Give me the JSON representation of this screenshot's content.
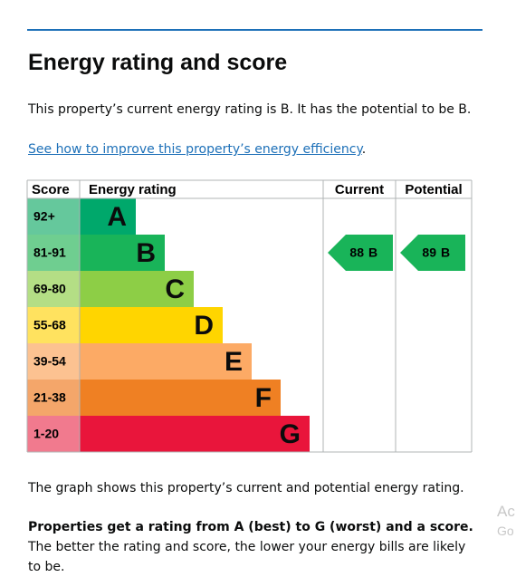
{
  "header": {
    "title": "Energy rating and score"
  },
  "intro": "This property’s current energy rating is B. It has the potential to be B.",
  "link": "See how to improve this property’s energy efficiency",
  "link_suffix": ".",
  "table": {
    "headers": [
      "Score",
      "Energy rating",
      "Current",
      "Potential"
    ],
    "rows": [
      {
        "score": "92+",
        "band": "A",
        "color": "#00a86b",
        "tint": "#65c89c"
      },
      {
        "score": "81-91",
        "band": "B",
        "color": "#19b459",
        "tint": "#6fce90"
      },
      {
        "score": "69-80",
        "band": "C",
        "color": "#8dce46",
        "tint": "#b4de85"
      },
      {
        "score": "55-68",
        "band": "D",
        "color": "#ffd500",
        "tint": "#ffe25f"
      },
      {
        "score": "39-54",
        "band": "E",
        "color": "#fcaa65",
        "tint": "#fcc291"
      },
      {
        "score": "21-38",
        "band": "F",
        "color": "#ef8023",
        "tint": "#f4a66a"
      },
      {
        "score": "1-20",
        "band": "G",
        "color": "#e9153b",
        "tint": "#f17a8e"
      }
    ],
    "current": {
      "score": 88,
      "band": "B"
    },
    "potential": {
      "score": 89,
      "band": "B"
    }
  },
  "caption": "The graph shows this property’s current and potential energy rating.",
  "note_bold": "Properties get a rating from A (best) to G (worst) and a score.",
  "note_rest": "The better the rating and score, the lower your energy bills are likely to be.",
  "watermark": [
    "Ac",
    "Go"
  ]
}
